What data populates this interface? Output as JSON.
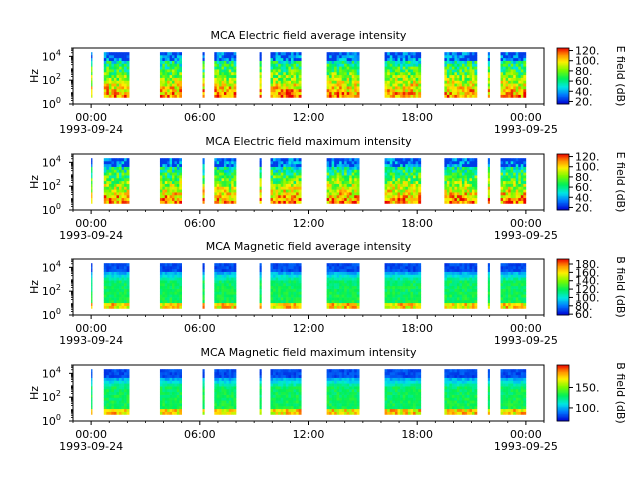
{
  "chart_data": [
    {
      "type": "heatmap",
      "title": "MCA  Electric field average intensity",
      "ylabel": "Hz",
      "colorbar_label": "E field (dB)",
      "colorbar_ticks": [
        "20.",
        "40.",
        "60.",
        "80.",
        "100.",
        "120."
      ],
      "colorbar_range": [
        15,
        125
      ],
      "ylim_log10": [
        0,
        4.7
      ],
      "y_ticks": [
        {
          "base": "10",
          "exp": "0"
        },
        {
          "base": "10",
          "exp": "2"
        },
        {
          "base": "10",
          "exp": "4"
        }
      ],
      "x_ticks": [
        "00:00",
        "06:00",
        "12:00",
        "18:00",
        "00:00"
      ],
      "x_dates": [
        "1993-09-24",
        "1993-09-25"
      ],
      "x_range_hours": [
        -1,
        25
      ],
      "style": "electric",
      "data_intervals_hours": [
        [
          0.0,
          0.05
        ],
        [
          0.7,
          2.1
        ],
        [
          3.8,
          5.0
        ],
        [
          6.15,
          6.25
        ],
        [
          6.8,
          8.0
        ],
        [
          9.3,
          9.4
        ],
        [
          9.9,
          11.6
        ],
        [
          13.0,
          14.8
        ],
        [
          16.2,
          18.2
        ],
        [
          19.5,
          21.3
        ],
        [
          21.9,
          22.0
        ],
        [
          22.6,
          24.0
        ]
      ]
    },
    {
      "type": "heatmap",
      "title": "MCA  Electric field maximum intensity",
      "ylabel": "Hz",
      "colorbar_label": "E field (dB)",
      "colorbar_ticks": [
        "20.",
        "40.",
        "60.",
        "80.",
        "100.",
        "120."
      ],
      "colorbar_range": [
        15,
        125
      ],
      "ylim_log10": [
        0,
        4.7
      ],
      "y_ticks": [
        {
          "base": "10",
          "exp": "0"
        },
        {
          "base": "10",
          "exp": "2"
        },
        {
          "base": "10",
          "exp": "4"
        }
      ],
      "x_ticks": [
        "00:00",
        "06:00",
        "12:00",
        "18:00",
        "00:00"
      ],
      "x_dates": [
        "1993-09-24",
        "1993-09-25"
      ],
      "x_range_hours": [
        -1,
        25
      ],
      "style": "electric",
      "data_intervals_hours": [
        [
          0.0,
          0.05
        ],
        [
          0.7,
          2.1
        ],
        [
          3.8,
          5.0
        ],
        [
          6.15,
          6.25
        ],
        [
          6.8,
          8.0
        ],
        [
          9.3,
          9.4
        ],
        [
          9.9,
          11.6
        ],
        [
          13.0,
          14.8
        ],
        [
          16.2,
          18.2
        ],
        [
          19.5,
          21.3
        ],
        [
          21.9,
          22.0
        ],
        [
          22.6,
          24.0
        ]
      ]
    },
    {
      "type": "heatmap",
      "title": "MCA  Magnetic field average intensity",
      "ylabel": "Hz",
      "colorbar_label": "B field (dB)",
      "colorbar_ticks": [
        "60.",
        "80.",
        "100.",
        "120.",
        "140.",
        "160.",
        "180."
      ],
      "colorbar_range": [
        58,
        192
      ],
      "ylim_log10": [
        0,
        4.7
      ],
      "y_ticks": [
        {
          "base": "10",
          "exp": "0"
        },
        {
          "base": "10",
          "exp": "2"
        },
        {
          "base": "10",
          "exp": "4"
        }
      ],
      "x_ticks": [
        "00:00",
        "06:00",
        "12:00",
        "18:00",
        "00:00"
      ],
      "x_dates": [
        "1993-09-24",
        "1993-09-25"
      ],
      "x_range_hours": [
        -1,
        25
      ],
      "style": "magnetic",
      "data_intervals_hours": [
        [
          0.0,
          0.05
        ],
        [
          0.7,
          2.1
        ],
        [
          3.8,
          5.0
        ],
        [
          6.15,
          6.25
        ],
        [
          6.8,
          8.0
        ],
        [
          9.3,
          9.4
        ],
        [
          9.9,
          11.6
        ],
        [
          13.0,
          14.8
        ],
        [
          16.2,
          18.2
        ],
        [
          19.5,
          21.3
        ],
        [
          21.9,
          22.0
        ],
        [
          22.6,
          24.0
        ]
      ]
    },
    {
      "type": "heatmap",
      "title": "MCA  Magnetic field maximum intensity",
      "ylabel": "Hz",
      "colorbar_label": "B field (dB)",
      "colorbar_ticks": [
        "100.",
        "150."
      ],
      "colorbar_range": [
        68,
        205
      ],
      "ylim_log10": [
        0,
        4.7
      ],
      "y_ticks": [
        {
          "base": "10",
          "exp": "0"
        },
        {
          "base": "10",
          "exp": "2"
        },
        {
          "base": "10",
          "exp": "4"
        }
      ],
      "x_ticks": [
        "00:00",
        "06:00",
        "12:00",
        "18:00",
        "00:00"
      ],
      "x_dates": [
        "1993-09-24",
        "1993-09-25"
      ],
      "x_range_hours": [
        -1,
        25
      ],
      "style": "magnetic",
      "data_intervals_hours": [
        [
          0.0,
          0.05
        ],
        [
          0.7,
          2.1
        ],
        [
          3.8,
          5.0
        ],
        [
          6.15,
          6.25
        ],
        [
          6.8,
          8.0
        ],
        [
          9.3,
          9.4
        ],
        [
          9.9,
          11.6
        ],
        [
          13.0,
          14.8
        ],
        [
          16.2,
          18.2
        ],
        [
          19.5,
          21.3
        ],
        [
          21.9,
          22.0
        ],
        [
          22.6,
          24.0
        ]
      ]
    }
  ]
}
